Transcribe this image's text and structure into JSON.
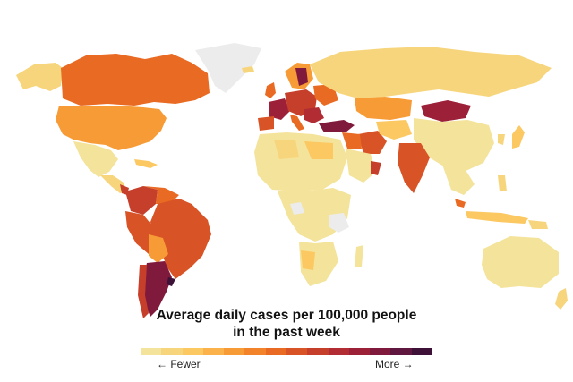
{
  "legend": {
    "title_line1": "Average daily cases per 100,000 people",
    "title_line2": "in the past week",
    "fewer_label": "← Fewer",
    "more_label": "More →",
    "scale_colors": [
      "#f4e39b",
      "#f7d57c",
      "#fbc862",
      "#fbb24a",
      "#f79b36",
      "#f2832b",
      "#e96a22",
      "#d85325",
      "#c63f2b",
      "#b22d33",
      "#9b2038",
      "#7f1a3c",
      "#5f173f",
      "#3e1238"
    ]
  },
  "map_colors": {
    "no_data": "#ececec",
    "ocean": "#ffffff"
  }
}
